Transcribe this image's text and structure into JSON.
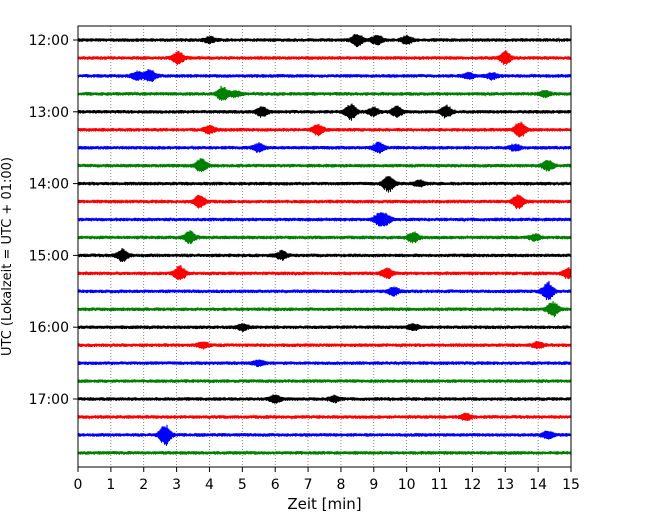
{
  "chart_data": {
    "type": "line",
    "title": "",
    "xlabel": "Zeit  [min]",
    "ylabel": "UTC (Lokalzeit = UTC + 01:00)",
    "xlim": [
      0,
      15
    ],
    "x_ticks": [
      0,
      1,
      2,
      3,
      4,
      5,
      6,
      7,
      8,
      9,
      10,
      11,
      12,
      13,
      14,
      15
    ],
    "x_tick_labels": [
      "0",
      "1",
      "2",
      "3",
      "4",
      "5",
      "6",
      "7",
      "8",
      "9",
      "10",
      "11",
      "12",
      "13",
      "14",
      "15"
    ],
    "y_tick_labels": [
      "12:00",
      "13:00",
      "14:00",
      "15:00",
      "16:00",
      "17:00"
    ],
    "y_ticks_row_index": [
      0,
      4,
      8,
      12,
      16,
      20
    ],
    "grid": "vertical-dotted",
    "colors": [
      "#000000",
      "#ff0000",
      "#0000ff",
      "#008000"
    ],
    "rows": [
      {
        "start": "12:00",
        "events": [
          [
            4.0,
            3
          ],
          [
            8.5,
            6
          ],
          [
            9.1,
            5
          ],
          [
            10.0,
            4
          ]
        ]
      },
      {
        "start": "12:15",
        "events": [
          [
            3.05,
            6
          ],
          [
            13.0,
            6
          ]
        ]
      },
      {
        "start": "12:30",
        "events": [
          [
            1.8,
            4
          ],
          [
            2.2,
            6
          ],
          [
            11.9,
            3
          ],
          [
            12.6,
            3
          ]
        ]
      },
      {
        "start": "12:45",
        "events": [
          [
            4.4,
            7
          ],
          [
            4.8,
            3
          ],
          [
            14.2,
            3
          ]
        ]
      },
      {
        "start": "13:00",
        "events": [
          [
            5.6,
            5
          ],
          [
            8.3,
            8
          ],
          [
            9.0,
            4
          ],
          [
            9.7,
            5
          ],
          [
            11.2,
            6
          ]
        ]
      },
      {
        "start": "13:15",
        "events": [
          [
            4.0,
            4
          ],
          [
            7.3,
            5
          ],
          [
            13.45,
            8
          ]
        ]
      },
      {
        "start": "13:30",
        "events": [
          [
            5.5,
            4
          ],
          [
            9.15,
            5
          ],
          [
            13.3,
            3
          ]
        ]
      },
      {
        "start": "13:45",
        "events": [
          [
            3.75,
            7
          ],
          [
            14.3,
            5
          ]
        ]
      },
      {
        "start": "14:00",
        "events": [
          [
            9.45,
            8
          ],
          [
            10.4,
            3
          ]
        ]
      },
      {
        "start": "14:15",
        "events": [
          [
            3.7,
            6
          ],
          [
            13.4,
            7
          ]
        ]
      },
      {
        "start": "14:30",
        "events": [
          [
            9.15,
            5
          ],
          [
            9.35,
            5
          ]
        ]
      },
      {
        "start": "14:45",
        "events": [
          [
            3.4,
            6
          ],
          [
            10.2,
            5
          ],
          [
            13.9,
            3
          ]
        ]
      },
      {
        "start": "15:00",
        "events": [
          [
            1.35,
            6
          ],
          [
            6.2,
            4
          ]
        ]
      },
      {
        "start": "15:15",
        "events": [
          [
            3.1,
            7
          ],
          [
            9.4,
            5
          ],
          [
            14.9,
            5
          ]
        ]
      },
      {
        "start": "15:30",
        "events": [
          [
            9.6,
            4
          ],
          [
            14.3,
            9
          ]
        ]
      },
      {
        "start": "15:45",
        "events": [
          [
            14.45,
            7
          ]
        ]
      },
      {
        "start": "16:00",
        "events": [
          [
            5.0,
            3
          ],
          [
            10.2,
            3
          ]
        ]
      },
      {
        "start": "16:15",
        "events": [
          [
            3.8,
            3
          ],
          [
            14.0,
            3
          ]
        ]
      },
      {
        "start": "16:30",
        "events": [
          [
            5.5,
            3
          ]
        ]
      },
      {
        "start": "16:45",
        "events": []
      },
      {
        "start": "17:00",
        "events": [
          [
            6.0,
            4
          ],
          [
            7.8,
            3
          ]
        ]
      },
      {
        "start": "17:15",
        "events": [
          [
            11.8,
            3
          ]
        ]
      },
      {
        "start": "17:30",
        "events": [
          [
            2.65,
            10
          ],
          [
            14.3,
            4
          ]
        ]
      },
      {
        "start": "17:45",
        "events": []
      }
    ]
  }
}
